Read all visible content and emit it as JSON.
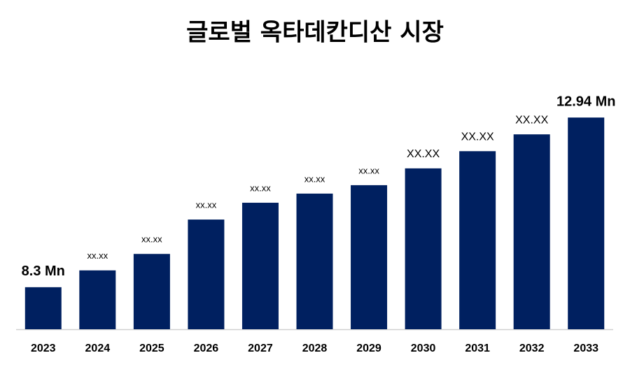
{
  "chart_data": {
    "type": "bar",
    "title": "글로벌 옥타데칸디산 시장",
    "categories": [
      "2023",
      "2024",
      "2025",
      "2026",
      "2027",
      "2028",
      "2029",
      "2030",
      "2031",
      "2032",
      "2033"
    ],
    "values": [
      8.3,
      8.76,
      9.21,
      10.15,
      10.61,
      10.86,
      11.09,
      11.55,
      12.02,
      12.48,
      12.94
    ],
    "value_labels": [
      "8.3 Mn",
      "xx.xx",
      "xx.xx",
      "xx.xx",
      "xx.xx",
      "xx.xx",
      "xx.xx",
      "XX.XX",
      "XX.XX",
      "XX.XX",
      "12.94 Mn"
    ],
    "color": "#002060",
    "ylim": [
      7.15,
      13.0
    ]
  }
}
